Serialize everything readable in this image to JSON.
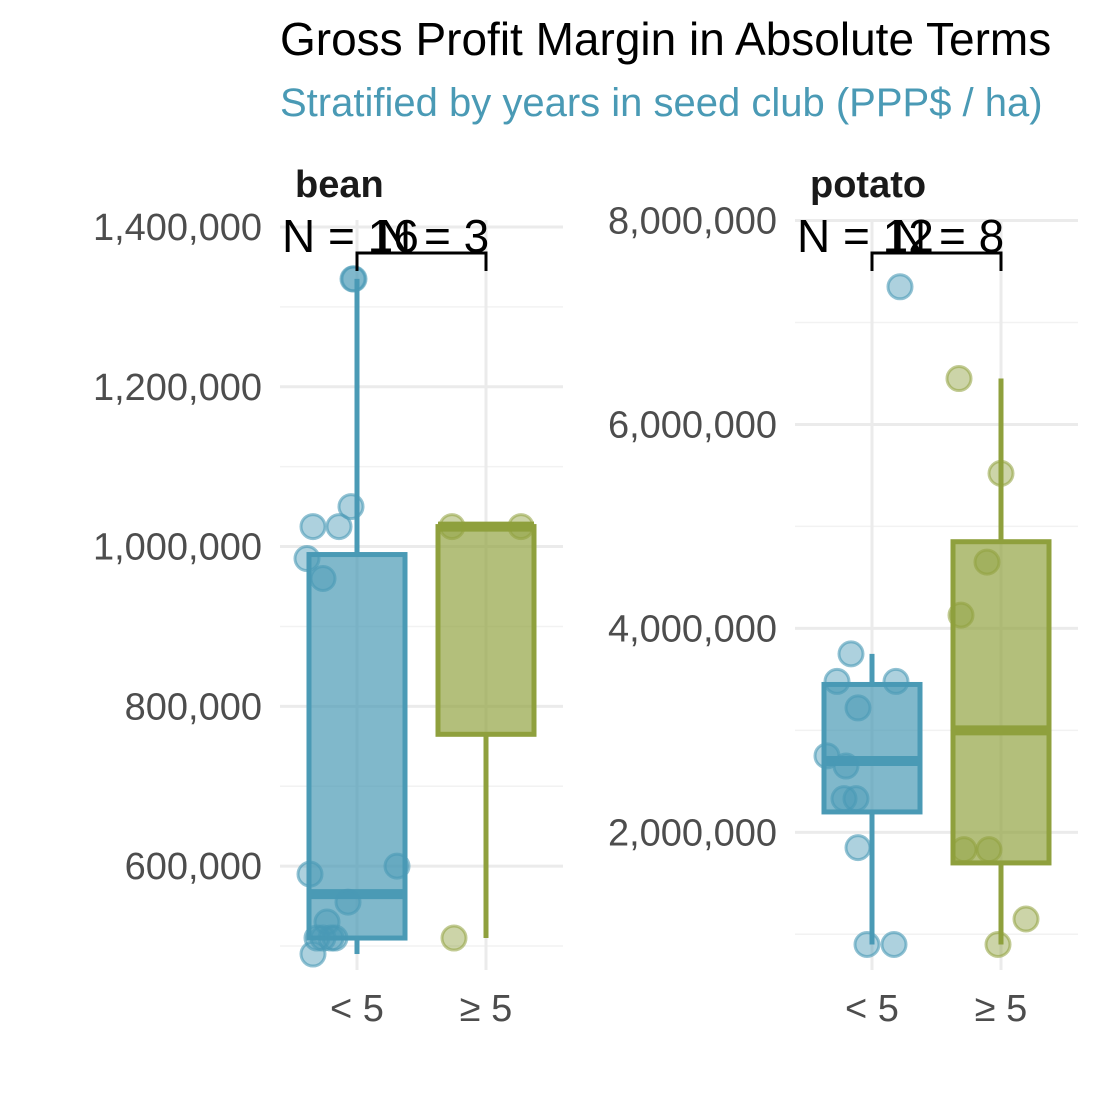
{
  "title": "Gross Profit Margin in Absolute Terms",
  "subtitle": "Stratified by years in seed club (PPP$ / ha)",
  "colors": {
    "group_lt5": "#4a9ab5",
    "group_ge5": "#8fa03d",
    "subtitle": "#4a9ab5",
    "grid": "#ebebeb"
  },
  "chart_data": [
    {
      "type": "box",
      "facet": "bean",
      "categories": [
        "< 5",
        "≥ 5"
      ],
      "y_ticks": [
        600000,
        800000,
        1000000,
        1200000,
        1400000
      ],
      "y_tick_labels": [
        "600,000",
        "800,000",
        "1,000,000",
        "1,200,000",
        "1,400,000"
      ],
      "ylim": [
        470000,
        1440000
      ],
      "n_labels": [
        "N = 16",
        "N = 3"
      ],
      "boxes": [
        {
          "category": "< 5",
          "min": 490000,
          "q1": 510000,
          "median": 565000,
          "q3": 990000,
          "max": 1335000
        },
        {
          "category": "≥ 5",
          "min": 510000,
          "q1": 765000,
          "median": 1025000,
          "q3": 1025000,
          "max": 1025000
        }
      ],
      "points": [
        {
          "category": "< 5",
          "values": [
            1335000,
            1050000,
            1025000,
            1025000,
            985000,
            960000,
            600000,
            590000,
            555000,
            530000,
            510000,
            510000,
            510000,
            510000,
            490000,
            1335000
          ]
        },
        {
          "category": "≥ 5",
          "values": [
            1025000,
            1025000,
            510000
          ]
        }
      ]
    },
    {
      "type": "box",
      "facet": "potato",
      "categories": [
        "< 5",
        "≥ 5"
      ],
      "y_ticks": [
        2000000,
        4000000,
        6000000,
        8000000
      ],
      "y_tick_labels": [
        "2,000,000",
        "4,000,000",
        "6,000,000",
        "8,000,000"
      ],
      "ylim": [
        650000,
        8250000
      ],
      "n_labels": [
        "N = 12",
        "N = 8"
      ],
      "boxes": [
        {
          "category": "< 5",
          "min": 900000,
          "q1": 2200000,
          "median": 2700000,
          "q3": 3450000,
          "max": 3750000
        },
        {
          "category": "≥ 5",
          "min": 900000,
          "q1": 1700000,
          "median": 3000000,
          "q3": 4850000,
          "max": 6450000
        }
      ],
      "points": [
        {
          "category": "< 5",
          "values": [
            7350000,
            3750000,
            3480000,
            3480000,
            3220000,
            2750000,
            2650000,
            2330000,
            2330000,
            1850000,
            900000,
            900000
          ]
        },
        {
          "category": "≥ 5",
          "values": [
            6450000,
            5520000,
            4650000,
            4130000,
            1830000,
            1830000,
            1150000,
            900000
          ]
        }
      ]
    }
  ]
}
